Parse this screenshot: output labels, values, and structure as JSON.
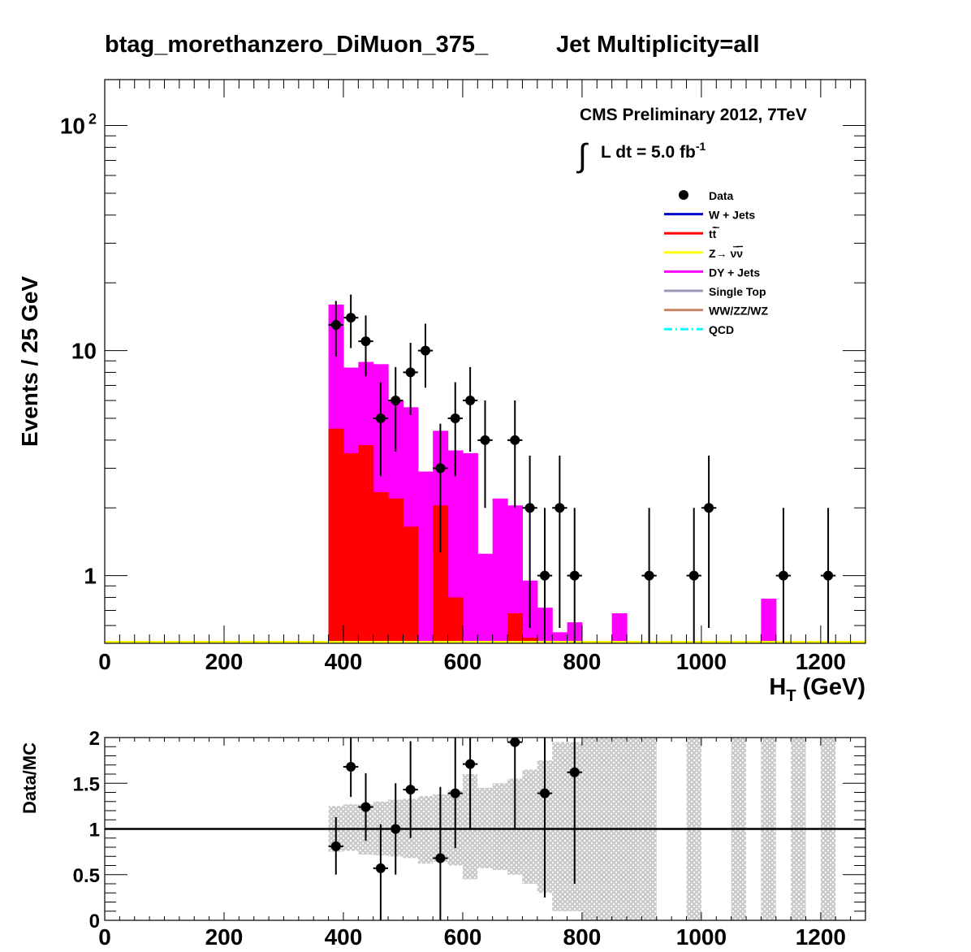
{
  "title": {
    "left": "btag_morethanzero_DiMuon_375_",
    "right": "Jet Multiplicity=all"
  },
  "cms": {
    "line1": "CMS Preliminary 2012, 7TeV",
    "lumi_prefix": "L dt = 5.0 fb",
    "lumi_sup": "-1"
  },
  "colors": {
    "data": "#000000",
    "wjets": "#0000cc",
    "ttbar": "#ff0000",
    "znunu": "#ffff00",
    "dy": "#ff00ff",
    "singletop": "#9999bb",
    "diboson": "#cc8866",
    "qcd": "#00ffff",
    "band": "#c8c8c8"
  },
  "chart_data": [
    {
      "type": "bar",
      "ylabel": "Events / 25 GeV",
      "xlabel_main": "H",
      "xlabel_sub": "T",
      "xlabel_unit": " (GeV)",
      "xlim": [
        0,
        1275
      ],
      "ylim": [
        0.5,
        160
      ],
      "log_y": true,
      "xticks": [
        "0",
        "200",
        "400",
        "600",
        "800",
        "1000",
        "1200"
      ],
      "yticks": [
        {
          "value": 1,
          "label": "1"
        },
        {
          "value": 10,
          "label": "10"
        },
        {
          "value": 100,
          "label": "10",
          "sup": "2"
        }
      ],
      "bin_width": 25,
      "legend": [
        {
          "name": "Data",
          "style": "marker",
          "color": "#000000"
        },
        {
          "name": "W + Jets",
          "style": "line",
          "color": "#0000cc"
        },
        {
          "name": "t",
          "name_tail": "t",
          "style": "line",
          "color": "#ff0000"
        },
        {
          "name": "Z→ ν",
          "name_tail": "ν",
          "style": "line",
          "color": "#ffff00"
        },
        {
          "name": "DY + Jets",
          "style": "line",
          "color": "#ff00ff"
        },
        {
          "name": "Single Top",
          "style": "line",
          "color": "#9999bb"
        },
        {
          "name": "WW/ZZ/WZ",
          "style": "line",
          "color": "#cc8866"
        },
        {
          "name": "QCD",
          "style": "dashdot",
          "color": "#00ffff"
        }
      ],
      "total_mc": [
        {
          "x": 375,
          "y": 16.0
        },
        {
          "x": 400,
          "y": 8.4
        },
        {
          "x": 425,
          "y": 8.9
        },
        {
          "x": 450,
          "y": 8.7
        },
        {
          "x": 475,
          "y": 6.0
        },
        {
          "x": 500,
          "y": 5.6
        },
        {
          "x": 525,
          "y": 2.9
        },
        {
          "x": 550,
          "y": 4.4
        },
        {
          "x": 575,
          "y": 3.6
        },
        {
          "x": 600,
          "y": 3.5
        },
        {
          "x": 625,
          "y": 1.25
        },
        {
          "x": 650,
          "y": 2.2
        },
        {
          "x": 675,
          "y": 2.05
        },
        {
          "x": 700,
          "y": 0.95
        },
        {
          "x": 725,
          "y": 0.72
        },
        {
          "x": 750,
          "y": 0.56
        },
        {
          "x": 775,
          "y": 0.62
        },
        {
          "x": 850,
          "y": 0.68
        },
        {
          "x": 1100,
          "y": 0.79
        }
      ],
      "ttbar": [
        {
          "x": 375,
          "y": 4.5
        },
        {
          "x": 400,
          "y": 3.5
        },
        {
          "x": 425,
          "y": 3.8
        },
        {
          "x": 450,
          "y": 2.35
        },
        {
          "x": 475,
          "y": 2.2
        },
        {
          "x": 500,
          "y": 1.65
        },
        {
          "x": 550,
          "y": 2.05
        },
        {
          "x": 575,
          "y": 0.8
        },
        {
          "x": 675,
          "y": 0.68
        },
        {
          "x": 700,
          "y": 0.53
        }
      ],
      "data_points": [
        {
          "x": 387.5,
          "y": 13
        },
        {
          "x": 412.5,
          "y": 14
        },
        {
          "x": 437.5,
          "y": 11
        },
        {
          "x": 462.5,
          "y": 5
        },
        {
          "x": 487.5,
          "y": 6
        },
        {
          "x": 512.5,
          "y": 8
        },
        {
          "x": 537.5,
          "y": 10
        },
        {
          "x": 562.5,
          "y": 3
        },
        {
          "x": 587.5,
          "y": 5
        },
        {
          "x": 612.5,
          "y": 6
        },
        {
          "x": 637.5,
          "y": 4
        },
        {
          "x": 687.5,
          "y": 4
        },
        {
          "x": 712.5,
          "y": 2
        },
        {
          "x": 737.5,
          "y": 1
        },
        {
          "x": 762.5,
          "y": 2
        },
        {
          "x": 787.5,
          "y": 1
        },
        {
          "x": 912.5,
          "y": 1
        },
        {
          "x": 987.5,
          "y": 1
        },
        {
          "x": 1012.5,
          "y": 2
        },
        {
          "x": 1137.5,
          "y": 1
        },
        {
          "x": 1212.5,
          "y": 1
        }
      ]
    },
    {
      "type": "scatter",
      "ylabel": "Data/MC",
      "xlim": [
        0,
        1275
      ],
      "ylim": [
        0,
        2
      ],
      "xticks": [
        "0",
        "200",
        "400",
        "600",
        "800",
        "1000",
        "1200"
      ],
      "yticks": [
        {
          "value": 0,
          "label": "0"
        },
        {
          "value": 0.5,
          "label": "0.5"
        },
        {
          "value": 1,
          "label": "1"
        },
        {
          "value": 1.5,
          "label": "1.5"
        },
        {
          "value": 2,
          "label": "2"
        }
      ],
      "reference_line": 1,
      "band": [
        {
          "x": 375,
          "lo": 0.75,
          "hi": 1.25
        },
        {
          "x": 400,
          "lo": 0.76,
          "hi": 1.27
        },
        {
          "x": 425,
          "lo": 0.72,
          "hi": 1.27
        },
        {
          "x": 450,
          "lo": 0.71,
          "hi": 1.3
        },
        {
          "x": 475,
          "lo": 0.7,
          "hi": 1.32
        },
        {
          "x": 500,
          "lo": 0.68,
          "hi": 1.33
        },
        {
          "x": 525,
          "lo": 0.62,
          "hi": 1.36
        },
        {
          "x": 550,
          "lo": 0.64,
          "hi": 1.38
        },
        {
          "x": 575,
          "lo": 0.6,
          "hi": 1.42
        },
        {
          "x": 600,
          "lo": 0.45,
          "hi": 1.6
        },
        {
          "x": 625,
          "lo": 0.57,
          "hi": 1.45
        },
        {
          "x": 650,
          "lo": 0.55,
          "hi": 1.5
        },
        {
          "x": 675,
          "lo": 0.5,
          "hi": 1.55
        },
        {
          "x": 700,
          "lo": 0.4,
          "hi": 1.65
        },
        {
          "x": 725,
          "lo": 0.3,
          "hi": 1.75
        },
        {
          "x": 750,
          "lo": 0.1,
          "hi": 1.95
        },
        {
          "x": 775,
          "lo": 0.1,
          "hi": 1.95
        },
        {
          "x": 800,
          "lo": 0.0,
          "hi": 2.0
        },
        {
          "x": 825,
          "lo": 0.0,
          "hi": 2.0
        },
        {
          "x": 850,
          "lo": 0.0,
          "hi": 2.0
        },
        {
          "x": 875,
          "lo": 0.0,
          "hi": 2.0
        },
        {
          "x": 900,
          "lo": 0.0,
          "hi": 2.0
        },
        {
          "x": 975,
          "lo": 0.0,
          "hi": 2.0
        },
        {
          "x": 1050,
          "lo": 0.0,
          "hi": 2.0
        },
        {
          "x": 1100,
          "lo": 0.0,
          "hi": 2.0
        },
        {
          "x": 1150,
          "lo": 0.0,
          "hi": 2.0
        },
        {
          "x": 1200,
          "lo": 0.0,
          "hi": 2.0
        }
      ],
      "ratio_points": [
        {
          "x": 387.5,
          "y": 0.81,
          "lo": 0.5,
          "hi": 1.13
        },
        {
          "x": 412.5,
          "y": 1.68,
          "lo": 1.35,
          "hi": 2.0
        },
        {
          "x": 437.5,
          "y": 1.24,
          "lo": 0.87,
          "hi": 1.61
        },
        {
          "x": 462.5,
          "y": 0.57,
          "lo": 0.0,
          "hi": 1.05
        },
        {
          "x": 487.5,
          "y": 1.0,
          "lo": 0.5,
          "hi": 1.5
        },
        {
          "x": 512.5,
          "y": 1.43,
          "lo": 0.9,
          "hi": 1.96
        },
        {
          "x": 562.5,
          "y": 0.68,
          "lo": 0.0,
          "hi": 1.46
        },
        {
          "x": 587.5,
          "y": 1.39,
          "lo": 0.79,
          "hi": 2.0
        },
        {
          "x": 612.5,
          "y": 1.71,
          "lo": 1.0,
          "hi": 2.0
        },
        {
          "x": 687.5,
          "y": 1.95,
          "lo": 1.0,
          "hi": 2.0
        },
        {
          "x": 737.5,
          "y": 1.39,
          "lo": 0.25,
          "hi": 2.0
        },
        {
          "x": 787.5,
          "y": 1.62,
          "lo": 0.4,
          "hi": 2.0
        }
      ]
    }
  ]
}
